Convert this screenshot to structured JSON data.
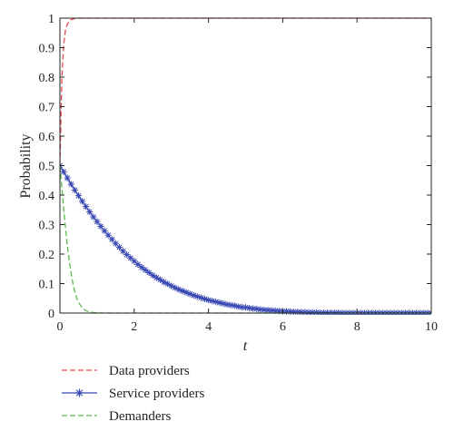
{
  "chart_data": {
    "type": "line",
    "title": "",
    "xlabel": "t",
    "ylabel": "Probability",
    "xlim": [
      0,
      10
    ],
    "ylim": [
      0,
      1
    ],
    "xticks": [
      0,
      2,
      4,
      6,
      8,
      10
    ],
    "yticks": [
      0,
      0.1,
      0.2,
      0.3,
      0.4,
      0.5,
      0.6,
      0.7,
      0.8,
      0.9,
      1
    ],
    "grid": false,
    "legend_position": "bottom-left",
    "series": [
      {
        "name": "Data providers",
        "color": "#e84a4a",
        "style": "dashed",
        "marker": "none",
        "x": [
          0,
          0.05,
          0.1,
          0.15,
          0.2,
          0.3,
          0.4,
          0.5,
          0.7,
          1,
          1.5,
          2,
          3,
          4,
          5,
          6,
          7,
          8,
          9,
          10
        ],
        "y": [
          0.5,
          0.79,
          0.91,
          0.96,
          0.98,
          0.995,
          0.999,
          1,
          1,
          1,
          1,
          1,
          1,
          1,
          1,
          1,
          1,
          1,
          1,
          1
        ]
      },
      {
        "name": "Service providers",
        "color": "#3848b4",
        "style": "solid",
        "marker": "asterisk",
        "x": [
          0,
          0.1,
          0.2,
          0.3,
          0.4,
          0.5,
          0.6,
          0.7,
          0.8,
          0.9,
          1,
          1.1,
          1.2,
          1.3,
          1.4,
          1.5,
          1.6,
          1.7,
          1.8,
          1.9,
          2,
          2.1,
          2.2,
          2.3,
          2.4,
          2.5,
          2.6,
          2.7,
          2.8,
          2.9,
          3,
          3.1,
          3.2,
          3.3,
          3.4,
          3.5,
          3.6,
          3.7,
          3.8,
          3.9,
          4,
          4.1,
          4.2,
          4.3,
          4.4,
          4.5,
          4.6,
          4.7,
          4.8,
          4.9,
          5,
          5.1,
          5.2,
          5.3,
          5.4,
          5.5,
          5.6,
          5.7,
          5.8,
          5.9,
          6,
          6.1,
          6.2,
          6.3,
          6.4,
          6.5,
          6.6,
          6.7,
          6.8,
          6.9,
          7,
          7.1,
          7.2,
          7.3,
          7.4,
          7.5,
          7.6,
          7.7,
          7.8,
          7.9,
          8,
          8.1,
          8.2,
          8.3,
          8.4,
          8.5,
          8.6,
          8.7,
          8.8,
          8.9,
          9,
          9.1,
          9.2,
          9.3,
          9.4,
          9.5,
          9.6,
          9.7,
          9.8,
          9.9,
          10
        ],
        "y": [
          0.5,
          0.479,
          0.458,
          0.437,
          0.417,
          0.398,
          0.379,
          0.361,
          0.343,
          0.326,
          0.31,
          0.294,
          0.279,
          0.264,
          0.25,
          0.236,
          0.223,
          0.21,
          0.198,
          0.187,
          0.176,
          0.165,
          0.155,
          0.146,
          0.137,
          0.128,
          0.12,
          0.113,
          0.105,
          0.099,
          0.092,
          0.086,
          0.08,
          0.075,
          0.07,
          0.065,
          0.06,
          0.056,
          0.052,
          0.048,
          0.044,
          0.041,
          0.038,
          0.035,
          0.032,
          0.029,
          0.027,
          0.025,
          0.022,
          0.02,
          0.019,
          0.017,
          0.015,
          0.014,
          0.012,
          0.011,
          0.01,
          0.009,
          0.008,
          0.007,
          0.006,
          0.006,
          0.005,
          0.004,
          0.004,
          0.003,
          0.003,
          0.002,
          0.002,
          0.002,
          0.001,
          0.001,
          0.001,
          0.001,
          0.001,
          0.001,
          0,
          0,
          0,
          0,
          0,
          0,
          0,
          0,
          0,
          0,
          0,
          0,
          0,
          0,
          0,
          0,
          0,
          0,
          0,
          0,
          0,
          0,
          0,
          0,
          0
        ]
      },
      {
        "name": "Demanders",
        "color": "#5cba4a",
        "style": "dashed",
        "marker": "none",
        "x": [
          0,
          0.05,
          0.1,
          0.15,
          0.2,
          0.25,
          0.3,
          0.35,
          0.4,
          0.45,
          0.5,
          0.6,
          0.7,
          0.8,
          0.9,
          1,
          1.2,
          1.5,
          2,
          3,
          4,
          5,
          6,
          7,
          8,
          9,
          10
        ],
        "y": [
          0.5,
          0.43,
          0.355,
          0.29,
          0.228,
          0.178,
          0.135,
          0.1,
          0.073,
          0.052,
          0.036,
          0.017,
          0.008,
          0.004,
          0.002,
          0.001,
          0,
          0,
          0,
          0,
          0,
          0,
          0,
          0,
          0,
          0,
          0
        ]
      }
    ]
  }
}
